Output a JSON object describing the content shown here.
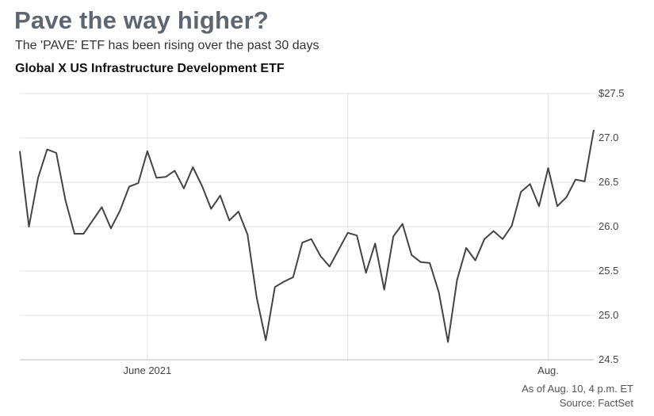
{
  "header": {
    "title": "Pave the way higher?",
    "subtitle": "The 'PAVE' ETF has been rising over the past 30 days",
    "chart_title": "Global X US Infrastructure Development ETF"
  },
  "footer": {
    "note": "As of Aug. 10, 4 p.m. ET",
    "source": "Source: FactSet"
  },
  "colors": {
    "line": "#444444",
    "grid": "#e2e2e2",
    "title": "#5e6670"
  },
  "chart_data": {
    "type": "line",
    "title": "Global X US Infrastructure Development ETF",
    "xlabel": "",
    "ylabel": "",
    "x_ticks": [
      {
        "label": "June 2021",
        "index": 14
      },
      {
        "label": "Aug.",
        "index": 58
      }
    ],
    "extra_vertical_grid_indices": [
      36
    ],
    "y_ticks": [
      "$27.5",
      "27.0",
      "26.5",
      "26.0",
      "25.5",
      "25.0",
      "24.5"
    ],
    "y_tick_values": [
      27.5,
      27.0,
      26.5,
      26.0,
      25.5,
      25.0,
      24.5
    ],
    "ylim": [
      24.5,
      27.5
    ],
    "y_axis_side": "right",
    "grid": true,
    "series": [
      {
        "values": [
          26.85,
          26.0,
          26.55,
          26.87,
          26.83,
          26.3,
          25.92,
          25.92,
          26.07,
          26.22,
          25.98,
          26.18,
          26.45,
          26.49,
          26.85,
          26.55,
          26.56,
          26.63,
          26.43,
          26.67,
          26.46,
          26.2,
          26.35,
          26.07,
          26.17,
          25.91,
          25.2,
          24.72,
          25.32,
          25.38,
          25.43,
          25.82,
          25.86,
          25.67,
          25.55,
          25.74,
          25.93,
          25.9,
          25.48,
          25.81,
          25.29,
          25.89,
          26.03,
          25.68,
          25.6,
          25.59,
          25.26,
          24.7,
          25.4,
          25.76,
          25.62,
          25.86,
          25.95,
          25.86,
          26.01,
          26.39,
          26.48,
          26.23,
          26.66,
          26.23,
          26.33,
          26.53,
          26.51,
          27.09
        ]
      }
    ]
  }
}
